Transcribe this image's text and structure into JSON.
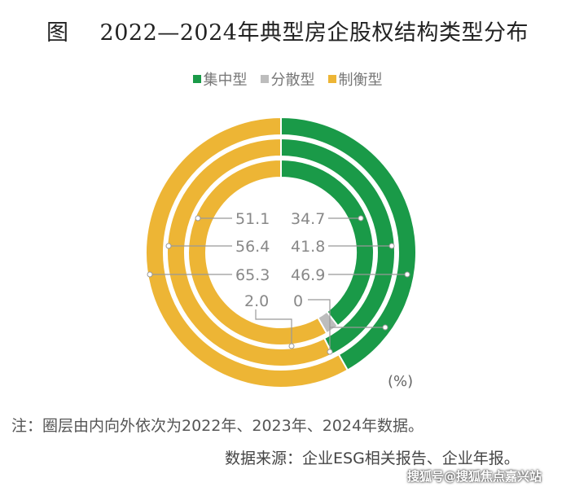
{
  "title": {
    "prefix": "图",
    "text": "2022—2024年典型房企股权结构类型分布"
  },
  "legend": [
    {
      "label": "集中型",
      "color": "#1a9a48"
    },
    {
      "label": "分散型",
      "color": "#bdbdbd"
    },
    {
      "label": "制衡型",
      "color": "#edb535"
    }
  ],
  "chart_data": {
    "type": "donut",
    "title": "2022—2024年典型房企股权结构类型分布",
    "unit": "(%)",
    "categories": [
      "集中型",
      "分散型",
      "制衡型"
    ],
    "rings": [
      {
        "year": "2022",
        "values": [
          34.7,
          2.0,
          51.1
        ]
      },
      {
        "year": "2023",
        "values": [
          41.8,
          0,
          56.4
        ]
      },
      {
        "year": "2024",
        "values": [
          46.9,
          0,
          65.3
        ]
      }
    ],
    "ring_order": "inner-to-outer",
    "legend_position": "top"
  },
  "labels": {
    "left": [
      "51.1",
      "56.4",
      "65.3"
    ],
    "right": [
      "34.7",
      "41.8",
      "46.9"
    ],
    "gray_left": "2.0",
    "gray_right": "0"
  },
  "unit_label": "(%)",
  "note": "注：圈层由内向外依次为2022年、2023年、2024年数据。",
  "source": "数据来源：企业ESG相关报告、企业年报。",
  "watermark": "搜狐号@搜狐焦点嘉兴站"
}
